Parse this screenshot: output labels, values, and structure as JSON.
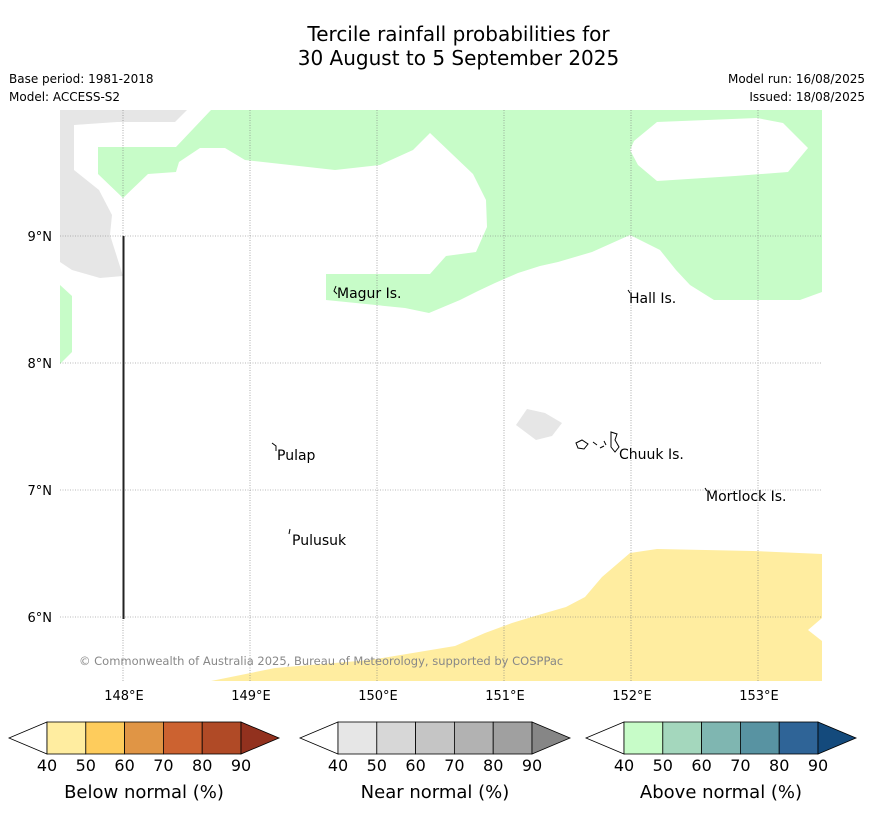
{
  "title": {
    "line1": "Tercile rainfall probabilities for",
    "line2": "30 August to 5 September 2025"
  },
  "info_left": {
    "base_period": "Base period: 1981-2018",
    "model": "Model: ACCESS-S2"
  },
  "info_right": {
    "model_run": "Model run: 16/08/2025",
    "issued": "Issued: 18/08/2025"
  },
  "map": {
    "lat_labels": [
      "9°N",
      "8°N",
      "7°N",
      "6°N"
    ],
    "lon_labels": [
      "148°E",
      "149°E",
      "150°E",
      "151°E",
      "152°E",
      "153°E"
    ],
    "places": [
      {
        "name": "Magur Is."
      },
      {
        "name": "Hall Is."
      },
      {
        "name": "Pulap"
      },
      {
        "name": "Chuuk Is."
      },
      {
        "name": "Mortlock Is."
      },
      {
        "name": "Pulusuk"
      }
    ],
    "copyright": "© Commonwealth of Australia 2025, Bureau of Meteorology, supported by COSPPac",
    "category_colors": {
      "below_normal_40_50": "#ffeda0",
      "near_normal_40_50": "#e6e6e6",
      "above_normal_40_50": "#c7fcc8"
    }
  },
  "colorbars": [
    {
      "label": "Below normal (%)",
      "ticks": [
        "40",
        "50",
        "60",
        "70",
        "80",
        "90"
      ],
      "colors": [
        "#ffffff",
        "#ffeda0",
        "#fecc5c",
        "#e09545",
        "#cc6230",
        "#b04a26",
        "#92311e"
      ]
    },
    {
      "label": "Near normal (%)",
      "ticks": [
        "40",
        "50",
        "60",
        "70",
        "80",
        "90"
      ],
      "colors": [
        "#ffffff",
        "#e6e6e6",
        "#d7d7d7",
        "#c5c5c5",
        "#b2b2b2",
        "#a0a0a0",
        "#868686"
      ]
    },
    {
      "label": "Above normal (%)",
      "ticks": [
        "40",
        "50",
        "60",
        "70",
        "80",
        "90"
      ],
      "colors": [
        "#ffffff",
        "#c7fcc8",
        "#a4d7bd",
        "#7fb6b1",
        "#5893a2",
        "#2f6497",
        "#144a7c"
      ]
    }
  ]
}
